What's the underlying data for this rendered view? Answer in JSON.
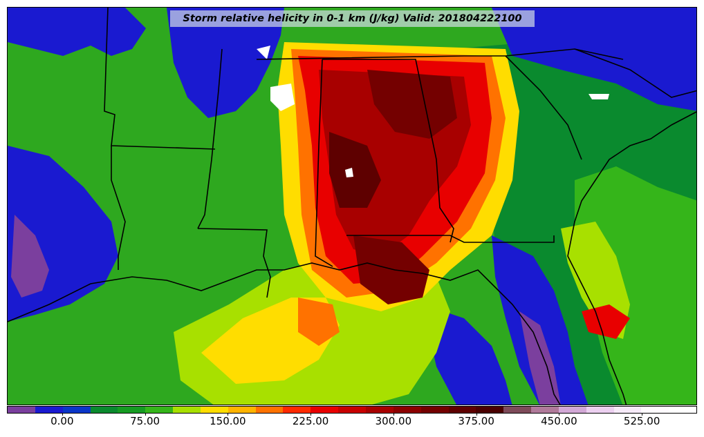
{
  "title": "Storm relative helicity in 0-1 km (J/kg) Valid: 201804222100",
  "colorbar": {
    "min": -50,
    "max": 575,
    "step": 25,
    "colors": [
      "#7b3f9e",
      "#1a1ad0",
      "#0a36c8",
      "#0a8a2e",
      "#169b22",
      "#35b51a",
      "#a8e000",
      "#ffdd00",
      "#ffb400",
      "#ff7200",
      "#ff2a00",
      "#e80000",
      "#c80000",
      "#a80000",
      "#8c0000",
      "#740000",
      "#5e0000",
      "#4a0000",
      "#7e4b5a",
      "#b07a9a",
      "#d2a8d6",
      "#ecd0f0",
      "#f6eaf8",
      "#fffbff",
      "#ffffff"
    ],
    "tick_labels": [
      "0.00",
      "75.00",
      "150.00",
      "225.00",
      "300.00",
      "375.00",
      "450.00",
      "525.00"
    ],
    "tick_values": [
      0,
      75,
      150,
      225,
      300,
      375,
      450,
      525
    ]
  },
  "field_colors": {
    "purple": "#7b3f9e",
    "blue": "#1a1ad0",
    "dark_green": "#0a8a2e",
    "green": "#35b51a",
    "yellow_green": "#a8e000",
    "yellow": "#ffdd00",
    "orange": "#ff7200",
    "red": "#e80000",
    "dark_red": "#8c0000",
    "maroon": "#4a0000",
    "white": "#ffffff",
    "border": "#000000"
  }
}
